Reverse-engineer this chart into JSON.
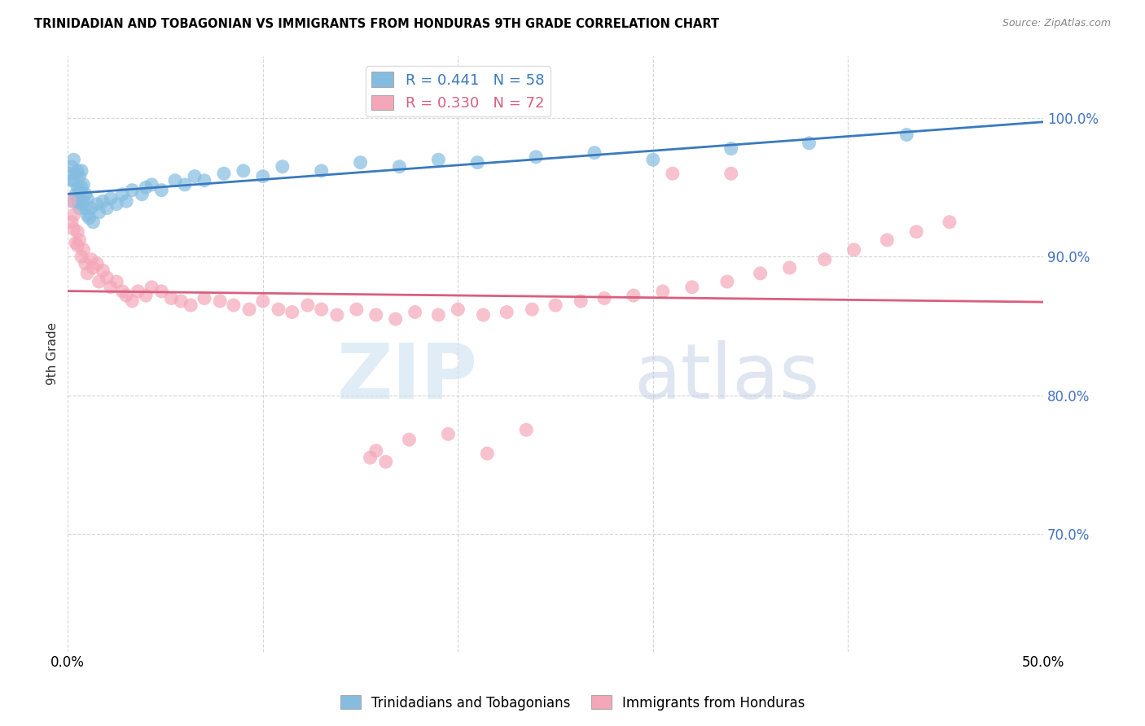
{
  "title": "TRINIDADIAN AND TOBAGONIAN VS IMMIGRANTS FROM HONDURAS 9TH GRADE CORRELATION CHART",
  "source": "Source: ZipAtlas.com",
  "ylabel": "9th Grade",
  "xlim": [
    0.0,
    0.5
  ],
  "ylim": [
    0.615,
    1.045
  ],
  "xtick_positions": [
    0.0,
    0.1,
    0.2,
    0.3,
    0.4,
    0.5
  ],
  "xtick_labels": [
    "0.0%",
    "",
    "",
    "",
    "",
    "50.0%"
  ],
  "ytick_positions": [
    0.7,
    0.8,
    0.9,
    1.0
  ],
  "ytick_labels": [
    "70.0%",
    "80.0%",
    "90.0%",
    "100.0%"
  ],
  "blue_R": 0.441,
  "blue_N": 58,
  "pink_R": 0.33,
  "pink_N": 72,
  "blue_color": "#85bde0",
  "pink_color": "#f4a7b9",
  "blue_line_color": "#3a7abf",
  "pink_line_color": "#d95f7f",
  "legend_label_blue": "Trinidadians and Tobagonians",
  "legend_label_pink": "Immigrants from Honduras",
  "watermark_zip": "ZIP",
  "watermark_atlas": "atlas",
  "blue_scatter_x": [
    0.001,
    0.002,
    0.002,
    0.003,
    0.003,
    0.003,
    0.004,
    0.004,
    0.005,
    0.005,
    0.005,
    0.006,
    0.006,
    0.006,
    0.007,
    0.007,
    0.007,
    0.008,
    0.008,
    0.009,
    0.009,
    0.01,
    0.01,
    0.011,
    0.012,
    0.013,
    0.015,
    0.016,
    0.018,
    0.02,
    0.022,
    0.025,
    0.028,
    0.03,
    0.033,
    0.038,
    0.04,
    0.043,
    0.048,
    0.055,
    0.06,
    0.065,
    0.07,
    0.08,
    0.09,
    0.1,
    0.11,
    0.13,
    0.15,
    0.17,
    0.19,
    0.21,
    0.24,
    0.27,
    0.3,
    0.34,
    0.38,
    0.43
  ],
  "blue_scatter_y": [
    0.96,
    0.955,
    0.965,
    0.94,
    0.955,
    0.97,
    0.945,
    0.96,
    0.94,
    0.95,
    0.962,
    0.935,
    0.948,
    0.958,
    0.938,
    0.95,
    0.962,
    0.94,
    0.952,
    0.935,
    0.945,
    0.93,
    0.942,
    0.928,
    0.935,
    0.925,
    0.938,
    0.932,
    0.94,
    0.935,
    0.942,
    0.938,
    0.945,
    0.94,
    0.948,
    0.945,
    0.95,
    0.952,
    0.948,
    0.955,
    0.952,
    0.958,
    0.955,
    0.96,
    0.962,
    0.958,
    0.965,
    0.962,
    0.968,
    0.965,
    0.97,
    0.968,
    0.972,
    0.975,
    0.97,
    0.978,
    0.982,
    0.988
  ],
  "pink_scatter_x": [
    0.001,
    0.002,
    0.003,
    0.003,
    0.004,
    0.005,
    0.005,
    0.006,
    0.007,
    0.008,
    0.009,
    0.01,
    0.012,
    0.013,
    0.015,
    0.016,
    0.018,
    0.02,
    0.022,
    0.025,
    0.028,
    0.03,
    0.033,
    0.036,
    0.04,
    0.043,
    0.048,
    0.053,
    0.058,
    0.063,
    0.07,
    0.078,
    0.085,
    0.093,
    0.1,
    0.108,
    0.115,
    0.123,
    0.13,
    0.138,
    0.148,
    0.158,
    0.168,
    0.178,
    0.19,
    0.2,
    0.213,
    0.225,
    0.238,
    0.25,
    0.263,
    0.275,
    0.29,
    0.305,
    0.32,
    0.338,
    0.355,
    0.37,
    0.388,
    0.403,
    0.42,
    0.435,
    0.452,
    0.34,
    0.175,
    0.195,
    0.215,
    0.31,
    0.235,
    0.155,
    0.158,
    0.163
  ],
  "pink_scatter_y": [
    0.94,
    0.925,
    0.92,
    0.93,
    0.91,
    0.918,
    0.908,
    0.912,
    0.9,
    0.905,
    0.895,
    0.888,
    0.898,
    0.892,
    0.895,
    0.882,
    0.89,
    0.885,
    0.878,
    0.882,
    0.875,
    0.872,
    0.868,
    0.875,
    0.872,
    0.878,
    0.875,
    0.87,
    0.868,
    0.865,
    0.87,
    0.868,
    0.865,
    0.862,
    0.868,
    0.862,
    0.86,
    0.865,
    0.862,
    0.858,
    0.862,
    0.858,
    0.855,
    0.86,
    0.858,
    0.862,
    0.858,
    0.86,
    0.862,
    0.865,
    0.868,
    0.87,
    0.872,
    0.875,
    0.878,
    0.882,
    0.888,
    0.892,
    0.898,
    0.905,
    0.912,
    0.918,
    0.925,
    0.96,
    0.768,
    0.772,
    0.758,
    0.96,
    0.775,
    0.755,
    0.76,
    0.752
  ]
}
